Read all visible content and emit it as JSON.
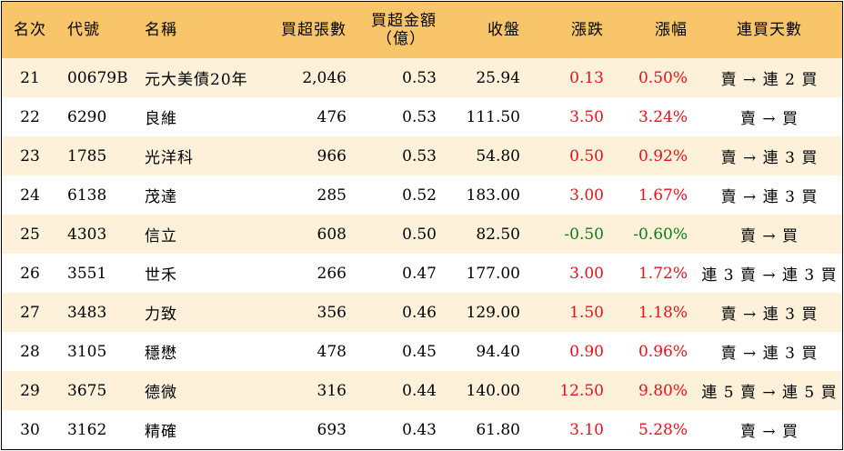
{
  "headers": {
    "rank": "名次",
    "code": "代號",
    "name": "名稱",
    "net_buy_lots": "買超張數",
    "net_buy_amount": "買超金額",
    "net_buy_amount_unit": "（億）",
    "close": "收盤",
    "change": "漲跌",
    "change_pct": "漲幅",
    "streak": "連買天數"
  },
  "colors": {
    "header_bg": "#f8c56a",
    "stripe_bg": "#fdf1d9",
    "up": "#e8101a",
    "down": "#0c7a16"
  },
  "rows": [
    {
      "rank": "21",
      "code": "00679B",
      "name": "元大美債20年",
      "lots": "2,046",
      "amount": "0.53",
      "close": "25.94",
      "change": "0.13",
      "pct": "0.50%",
      "dir": "up",
      "streak": "賣 → 連 2 買"
    },
    {
      "rank": "22",
      "code": "6290",
      "name": "良維",
      "lots": "476",
      "amount": "0.53",
      "close": "111.50",
      "change": "3.50",
      "pct": "3.24%",
      "dir": "up",
      "streak": "賣 → 買"
    },
    {
      "rank": "23",
      "code": "1785",
      "name": "光洋科",
      "lots": "966",
      "amount": "0.53",
      "close": "54.80",
      "change": "0.50",
      "pct": "0.92%",
      "dir": "up",
      "streak": "賣 → 連 3 買"
    },
    {
      "rank": "24",
      "code": "6138",
      "name": "茂達",
      "lots": "285",
      "amount": "0.52",
      "close": "183.00",
      "change": "3.00",
      "pct": "1.67%",
      "dir": "up",
      "streak": "賣 → 連 3 買"
    },
    {
      "rank": "25",
      "code": "4303",
      "name": "信立",
      "lots": "608",
      "amount": "0.50",
      "close": "82.50",
      "change": "-0.50",
      "pct": "-0.60%",
      "dir": "down",
      "streak": "賣 → 買"
    },
    {
      "rank": "26",
      "code": "3551",
      "name": "世禾",
      "lots": "266",
      "amount": "0.47",
      "close": "177.00",
      "change": "3.00",
      "pct": "1.72%",
      "dir": "up",
      "streak": "連 3 賣 → 連 3 買"
    },
    {
      "rank": "27",
      "code": "3483",
      "name": "力致",
      "lots": "356",
      "amount": "0.46",
      "close": "129.00",
      "change": "1.50",
      "pct": "1.18%",
      "dir": "up",
      "streak": "賣 → 連 3 買"
    },
    {
      "rank": "28",
      "code": "3105",
      "name": "穩懋",
      "lots": "478",
      "amount": "0.45",
      "close": "94.40",
      "change": "0.90",
      "pct": "0.96%",
      "dir": "up",
      "streak": "賣 → 連 3 買"
    },
    {
      "rank": "29",
      "code": "3675",
      "name": "德微",
      "lots": "316",
      "amount": "0.44",
      "close": "140.00",
      "change": "12.50",
      "pct": "9.80%",
      "dir": "up",
      "streak": "連 5 賣 → 連 5 買"
    },
    {
      "rank": "30",
      "code": "3162",
      "name": "精確",
      "lots": "693",
      "amount": "0.43",
      "close": "61.80",
      "change": "3.10",
      "pct": "5.28%",
      "dir": "up",
      "streak": "賣 → 買"
    }
  ]
}
